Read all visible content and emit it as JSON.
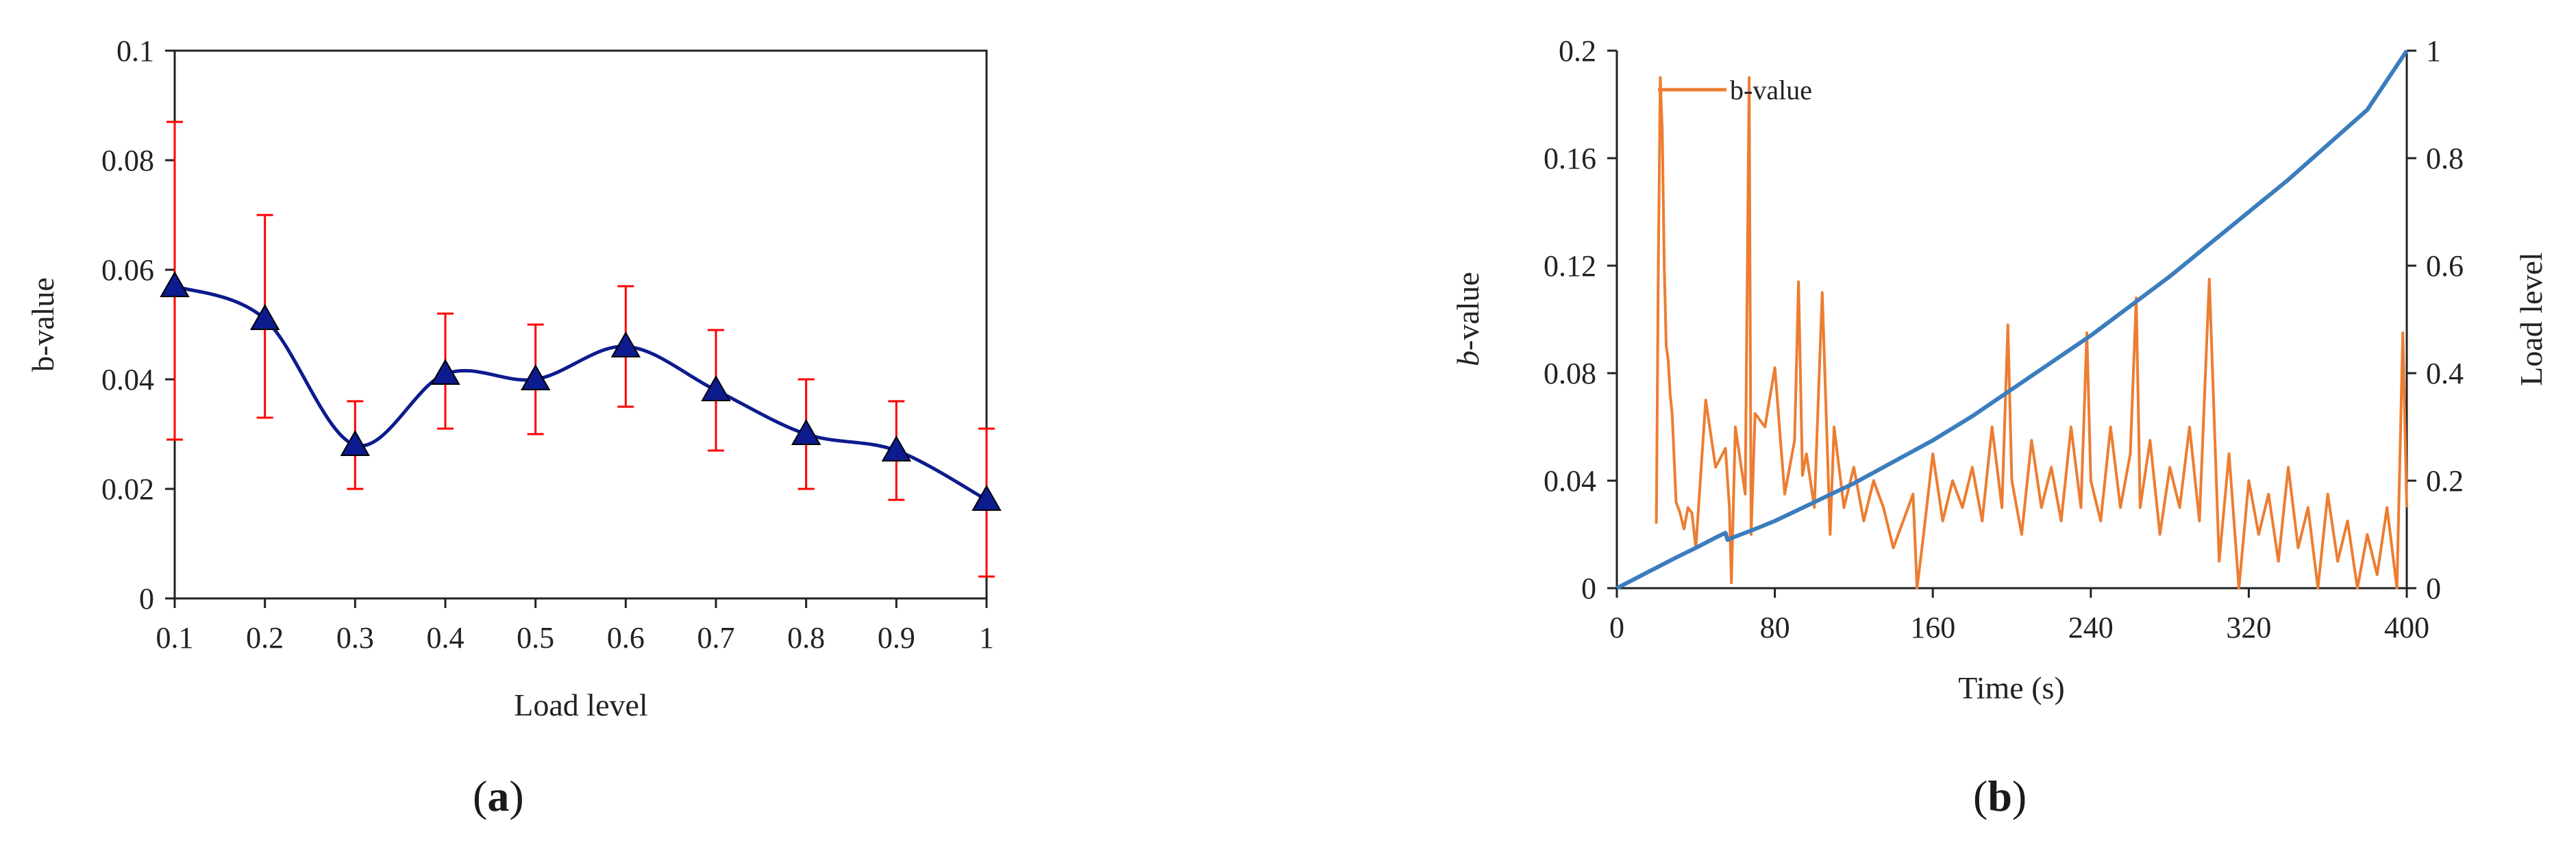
{
  "colors": {
    "a_line": "#0d1b8e",
    "a_marker": "#0d1b8e",
    "a_error": "#ff0000",
    "b_bvalue": "#ed7d31",
    "b_load": "#3b7dbd",
    "axis": "#222222"
  },
  "chart_data": [
    {
      "type": "line",
      "panel": "a",
      "caption_open": "(",
      "caption_letter": "a",
      "caption_close": ")",
      "xlabel": "Load level",
      "ylabel": "b-value",
      "xlim": [
        0.1,
        1
      ],
      "ylim": [
        0,
        0.1
      ],
      "xticks": [
        "0.1",
        "0.2",
        "0.3",
        "0.4",
        "0.5",
        "0.6",
        "0.7",
        "0.8",
        "0.9",
        "1"
      ],
      "yticks": [
        "0",
        "0.02",
        "0.04",
        "0.06",
        "0.08",
        "0.1"
      ],
      "grid": false,
      "series": [
        {
          "x": [
            0.1,
            0.2,
            0.3,
            0.4,
            0.5,
            0.6,
            0.7,
            0.8,
            0.9,
            1.0
          ],
          "y": [
            0.057,
            0.051,
            0.028,
            0.041,
            0.04,
            0.046,
            0.038,
            0.03,
            0.027,
            0.018
          ],
          "err_low": [
            0.029,
            0.033,
            0.02,
            0.031,
            0.03,
            0.035,
            0.027,
            0.02,
            0.018,
            0.004
          ],
          "err_high": [
            0.087,
            0.07,
            0.036,
            0.052,
            0.05,
            0.057,
            0.049,
            0.04,
            0.036,
            0.031
          ]
        }
      ]
    },
    {
      "type": "line",
      "panel": "b",
      "caption_open": "(",
      "caption_letter": "b",
      "caption_close": ")",
      "xlabel": "Time (s)",
      "ylabel_italic": "b",
      "ylabel_rest": "-value",
      "y2label": "Load level",
      "xlim": [
        0,
        400
      ],
      "ylim": [
        0,
        0.2
      ],
      "y2lim": [
        0,
        1
      ],
      "xticks": [
        "0",
        "80",
        "160",
        "240",
        "320",
        "400"
      ],
      "yticks": [
        "0",
        "0.04",
        "0.08",
        "0.12",
        "0.16",
        "0.2"
      ],
      "y2ticks": [
        "0",
        "0.2",
        "0.4",
        "0.6",
        "0.8",
        "1"
      ],
      "legend": {
        "entries": [
          "b-value"
        ],
        "placement": "top-left"
      },
      "grid": false,
      "series": [
        {
          "name": "b-value",
          "axis": "left",
          "x": [
            20,
            21,
            22,
            23,
            24,
            25,
            26,
            27,
            28,
            30,
            32,
            34,
            36,
            38,
            40,
            45,
            50,
            55,
            57,
            58,
            60,
            65,
            67,
            68,
            70,
            75,
            80,
            85,
            90,
            92,
            94,
            96,
            100,
            104,
            108,
            110,
            115,
            120,
            125,
            130,
            135,
            140,
            145,
            150,
            152,
            155,
            160,
            165,
            170,
            175,
            180,
            185,
            190,
            195,
            198,
            200,
            205,
            210,
            215,
            220,
            225,
            230,
            235,
            238,
            240,
            245,
            250,
            255,
            260,
            263,
            265,
            270,
            275,
            280,
            285,
            290,
            295,
            300,
            305,
            310,
            315,
            320,
            325,
            330,
            335,
            340,
            345,
            350,
            355,
            360,
            365,
            370,
            375,
            380,
            385,
            390,
            395,
            398,
            400
          ],
          "y": [
            0.024,
            0.12,
            0.19,
            0.17,
            0.12,
            0.09,
            0.085,
            0.072,
            0.065,
            0.032,
            0.028,
            0.022,
            0.03,
            0.028,
            0.015,
            0.07,
            0.045,
            0.052,
            0.03,
            0.002,
            0.06,
            0.035,
            0.19,
            0.02,
            0.065,
            0.06,
            0.082,
            0.035,
            0.055,
            0.114,
            0.042,
            0.05,
            0.03,
            0.11,
            0.02,
            0.06,
            0.03,
            0.045,
            0.025,
            0.04,
            0.03,
            0.015,
            0.025,
            0.035,
            0.0,
            0.018,
            0.05,
            0.025,
            0.04,
            0.03,
            0.045,
            0.025,
            0.06,
            0.03,
            0.098,
            0.04,
            0.02,
            0.055,
            0.03,
            0.045,
            0.025,
            0.06,
            0.03,
            0.095,
            0.04,
            0.025,
            0.06,
            0.03,
            0.05,
            0.108,
            0.03,
            0.055,
            0.02,
            0.045,
            0.03,
            0.06,
            0.025,
            0.115,
            0.01,
            0.05,
            0.0,
            0.04,
            0.02,
            0.035,
            0.01,
            0.045,
            0.015,
            0.03,
            0.0,
            0.035,
            0.01,
            0.025,
            0.0,
            0.02,
            0.005,
            0.03,
            0.0,
            0.095,
            0.03
          ]
        },
        {
          "name": "Load level",
          "axis": "right",
          "x": [
            0,
            10,
            20,
            30,
            40,
            50,
            55,
            56,
            60,
            70,
            80,
            100,
            120,
            140,
            160,
            180,
            200,
            220,
            240,
            260,
            280,
            300,
            320,
            340,
            360,
            380,
            400
          ],
          "y": [
            0.0,
            0.019,
            0.038,
            0.057,
            0.075,
            0.094,
            0.103,
            0.09,
            0.096,
            0.11,
            0.125,
            0.16,
            0.195,
            0.235,
            0.275,
            0.32,
            0.37,
            0.42,
            0.47,
            0.525,
            0.58,
            0.64,
            0.7,
            0.76,
            0.825,
            0.89,
            1.0
          ]
        }
      ]
    }
  ]
}
